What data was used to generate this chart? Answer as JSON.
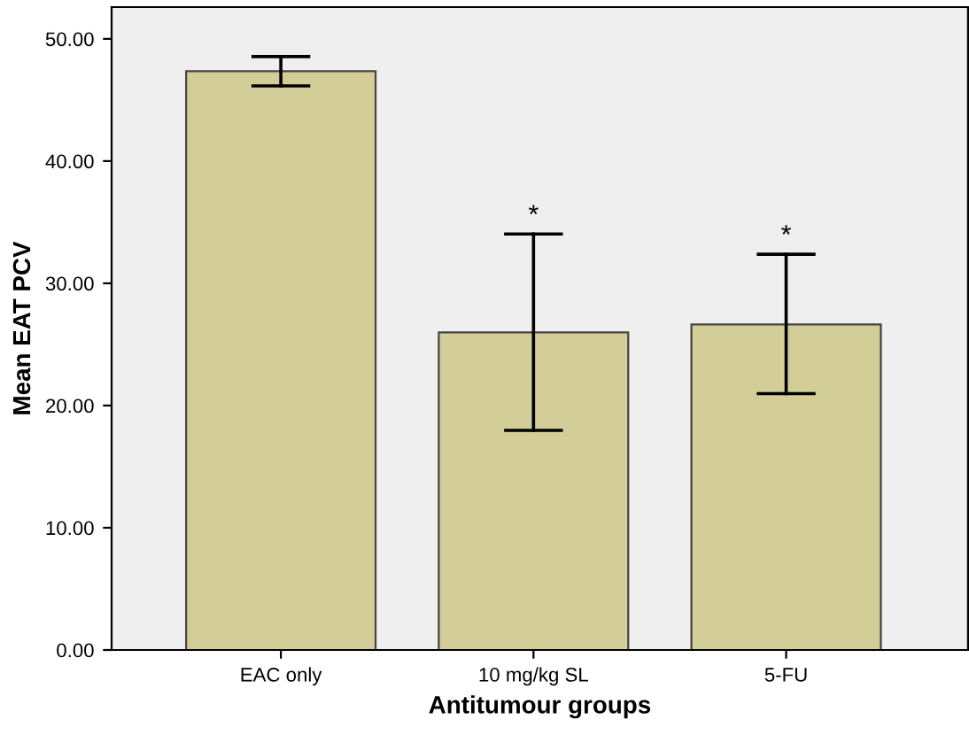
{
  "chart_data": {
    "type": "bar",
    "xlabel": "Antitumour groups",
    "ylabel": "Mean EAT PCV",
    "categories": [
      "EAC only",
      "10 mg/kg SL",
      "5-FU"
    ],
    "values": [
      47.35,
      25.98,
      26.63
    ],
    "errors": [
      [
        46.15,
        48.55
      ],
      [
        17.97,
        34.03
      ],
      [
        20.97,
        32.38
      ]
    ],
    "color": "#d3ce97",
    "ylim": [
      0,
      52.6
    ],
    "yticks": [
      {
        "value": 0,
        "label": "0.00"
      },
      {
        "value": 10,
        "label": "10.00"
      },
      {
        "value": 20,
        "label": "20.00"
      },
      {
        "value": 30,
        "label": "30.00"
      },
      {
        "value": 40,
        "label": "40.00"
      },
      {
        "value": 50,
        "label": "50.00"
      }
    ],
    "annotations": [
      {
        "text": "*",
        "x": "10 mg/kg SL",
        "y": 34.03
      },
      {
        "text": "*",
        "x": "5-FU",
        "y": 32.38
      }
    ],
    "grid": false
  }
}
